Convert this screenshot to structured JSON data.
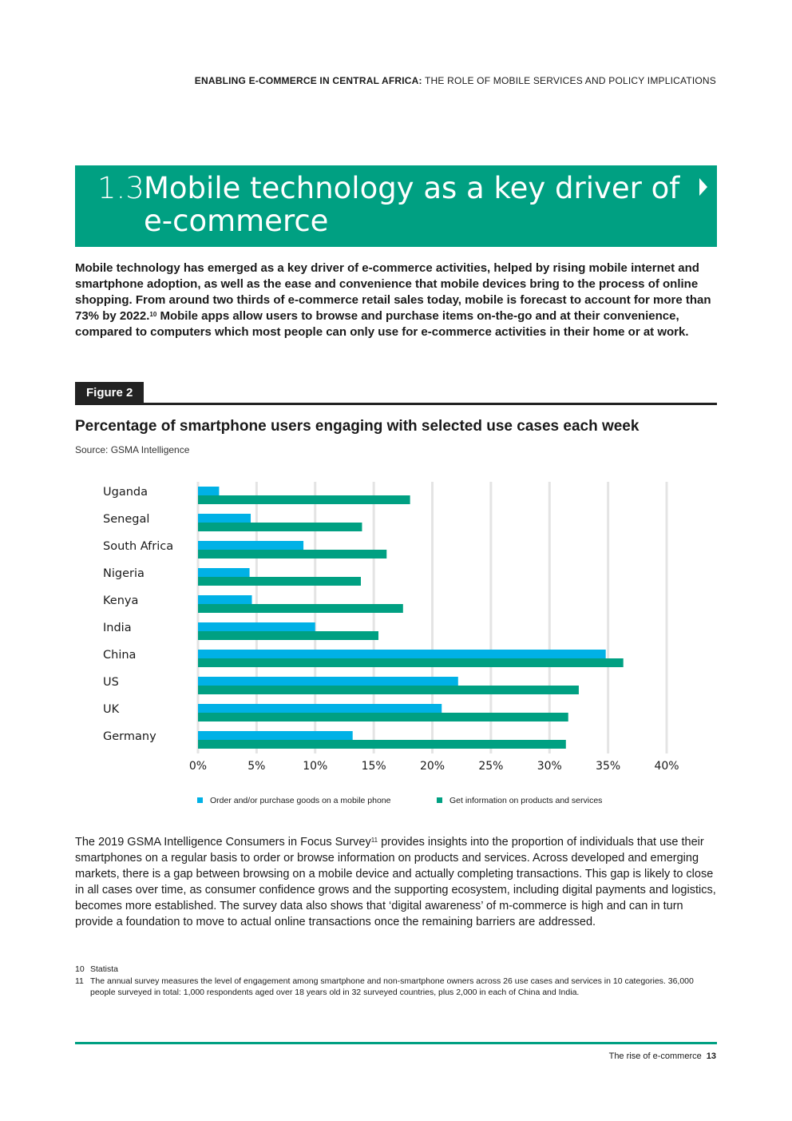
{
  "running_header": {
    "bold": "ENABLING E-COMMERCE IN CENTRAL AFRICA:",
    "rest": "THE ROLE OF MOBILE SERVICES AND POLICY IMPLICATIONS"
  },
  "section": {
    "number": "1.3",
    "title": "Mobile technology as a key driver of e-commerce"
  },
  "intro": {
    "part1": "Mobile technology has emerged as a key driver of e-commerce activities, helped by rising mobile internet and smartphone adoption, as well as the ease and convenience that mobile devices bring to the process of online shopping. From around two thirds of e-commerce retail sales today, mobile is forecast to account for more than 73% by 2022.",
    "ref": "10",
    "part2": " Mobile apps allow users to browse and purchase items on-the-go and at their convenience, compared to computers which most people can only use for e-commerce activities in their home or at work."
  },
  "figure": {
    "label": "Figure 2",
    "title": "Percentage of smartphone users engaging with selected use cases each week",
    "source": "Source: GSMA Intelligence"
  },
  "chart_data": {
    "type": "bar",
    "orientation": "horizontal",
    "categories": [
      "Uganda",
      "Senegal",
      "South Africa",
      "Nigeria",
      "Kenya",
      "India",
      "China",
      "US",
      "UK",
      "Germany"
    ],
    "series": [
      {
        "name": "Order and/or purchase goods on a mobile phone",
        "color": "#00b1e6",
        "values": [
          1.8,
          4.5,
          9.0,
          4.4,
          4.6,
          10.0,
          34.8,
          22.2,
          20.8,
          13.2
        ]
      },
      {
        "name": "Get information on products and services",
        "color": "#00a082",
        "values": [
          18.1,
          14.0,
          16.1,
          13.9,
          17.5,
          15.4,
          36.3,
          32.5,
          31.6,
          31.4
        ]
      }
    ],
    "xlim": [
      0,
      40
    ],
    "xticks": [
      "0%",
      "5%",
      "10%",
      "15%",
      "20%",
      "25%",
      "30%",
      "35%",
      "40%"
    ],
    "xlabel": "",
    "ylabel": "",
    "grid": true,
    "legend": "bottom"
  },
  "body": {
    "p1_start": "The 2019 GSMA Intelligence Consumers in Focus Survey",
    "ref": "11",
    "p1_rest": " provides insights into the proportion of individuals that use their smartphones on a regular basis to order or browse information on products and services. Across developed and emerging markets, there is a gap between browsing on a mobile device and actually completing transactions. This gap is likely to close in all cases over time, as consumer confidence grows and the supporting ecosystem, including digital payments and logistics, becomes more established. The survey data also shows that ‘digital awareness’ of m-commerce is high and can in turn provide a foundation to move to actual online transactions once the remaining barriers are addressed."
  },
  "footnotes": [
    {
      "num": "10",
      "text": "Statista"
    },
    {
      "num": "11",
      "text": "The annual survey measures the level of engagement among smartphone and non-smartphone owners across 26 use cases and services in 10 categories. 36,000 people surveyed in total: 1,000 respondents aged over 18 years old in 32 surveyed countries, plus 2,000 in each of China and India."
    }
  ],
  "footer": {
    "section": "The rise of e-commerce",
    "page": "13"
  },
  "colors": {
    "brand_green": "#00a082",
    "brand_blue": "#00b1e6"
  }
}
